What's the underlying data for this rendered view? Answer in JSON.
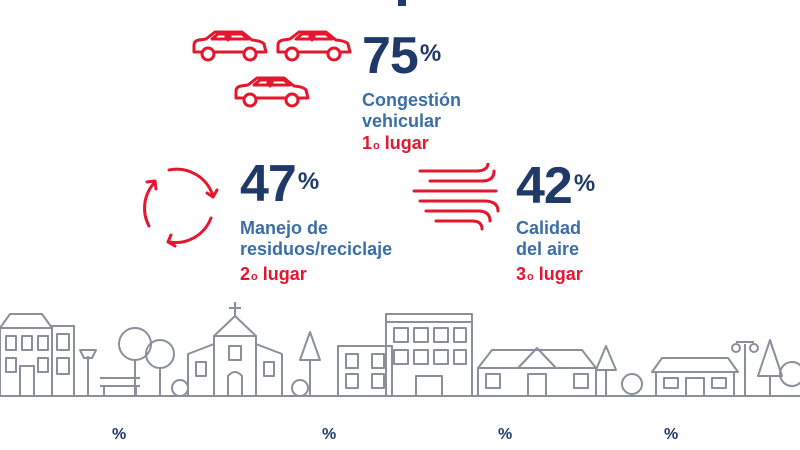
{
  "colors": {
    "navy": "#1f3a68",
    "blue": "#3a6ea5",
    "red": "#e3172e",
    "line": "#8a8f99"
  },
  "stats": [
    {
      "value": "75",
      "unit": "%",
      "label_lines": [
        "Congestión",
        "vehicular"
      ],
      "rank_num": "1",
      "rank_sup": "o",
      "rank_word": "lugar",
      "icon": "cars-icon"
    },
    {
      "value": "47",
      "unit": "%",
      "label_lines": [
        "Manejo de",
        "residuos/reciclaje"
      ],
      "rank_num": "2",
      "rank_sup": "o",
      "rank_word": "lugar",
      "icon": "recycle-arrows-icon"
    },
    {
      "value": "42",
      "unit": "%",
      "label_lines": [
        "Calidad",
        "del aire"
      ],
      "rank_num": "3",
      "rank_sup": "o",
      "rank_word": "lugar",
      "icon": "wind-icon"
    }
  ],
  "bottom_partial": [
    {
      "value": "",
      "unit": "%"
    },
    {
      "value": "",
      "unit": "%"
    },
    {
      "value": "",
      "unit": "%"
    },
    {
      "value": "",
      "unit": "%"
    }
  ]
}
